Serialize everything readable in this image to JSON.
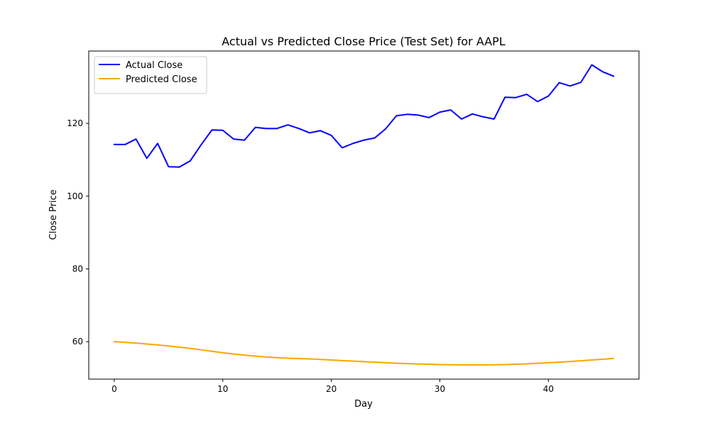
{
  "chart_data": {
    "type": "line",
    "title": "Actual vs Predicted Close Price (Test Set) for AAPL",
    "xlabel": "Day",
    "ylabel": "Close Price",
    "xlim": [
      -2.35,
      48.35
    ],
    "ylim": [
      49.7,
      139.9
    ],
    "xticks": [
      0,
      10,
      20,
      30,
      40
    ],
    "yticks": [
      60,
      80,
      100,
      120
    ],
    "grid": false,
    "legend_position": "top-left",
    "x": [
      0,
      1,
      2,
      3,
      4,
      5,
      6,
      7,
      8,
      9,
      10,
      11,
      12,
      13,
      14,
      15,
      16,
      17,
      18,
      19,
      20,
      21,
      22,
      23,
      24,
      25,
      26,
      27,
      28,
      29,
      30,
      31,
      32,
      33,
      34,
      35,
      36,
      37,
      38,
      39,
      40,
      41,
      42,
      43,
      44,
      45,
      46
    ],
    "series": [
      {
        "name": "Actual Close",
        "color": "#0000ff",
        "values": [
          114.2,
          114.2,
          115.7,
          110.4,
          114.5,
          108.1,
          108.0,
          109.7,
          114.1,
          118.2,
          118.1,
          115.7,
          115.4,
          118.9,
          118.6,
          118.6,
          119.6,
          118.6,
          117.4,
          118.0,
          116.7,
          113.3,
          114.5,
          115.4,
          116.0,
          118.5,
          122.1,
          122.5,
          122.3,
          121.6,
          123.1,
          123.7,
          121.2,
          122.6,
          121.8,
          121.2,
          127.2,
          127.1,
          128.0,
          126.0,
          127.5,
          131.2,
          130.3,
          131.3,
          136.1,
          134.2,
          133.0
        ]
      },
      {
        "name": "Predicted Close",
        "color": "#ffa500",
        "values": [
          60.0,
          59.8,
          59.6,
          59.35,
          59.1,
          58.8,
          58.5,
          58.15,
          57.75,
          57.35,
          56.95,
          56.6,
          56.3,
          56.0,
          55.8,
          55.6,
          55.45,
          55.35,
          55.25,
          55.1,
          54.95,
          54.8,
          54.65,
          54.5,
          54.35,
          54.2,
          54.05,
          53.95,
          53.85,
          53.8,
          53.7,
          53.65,
          53.6,
          53.6,
          53.6,
          53.65,
          53.7,
          53.8,
          53.9,
          54.05,
          54.2,
          54.35,
          54.55,
          54.75,
          54.95,
          55.15,
          55.4
        ]
      }
    ]
  }
}
